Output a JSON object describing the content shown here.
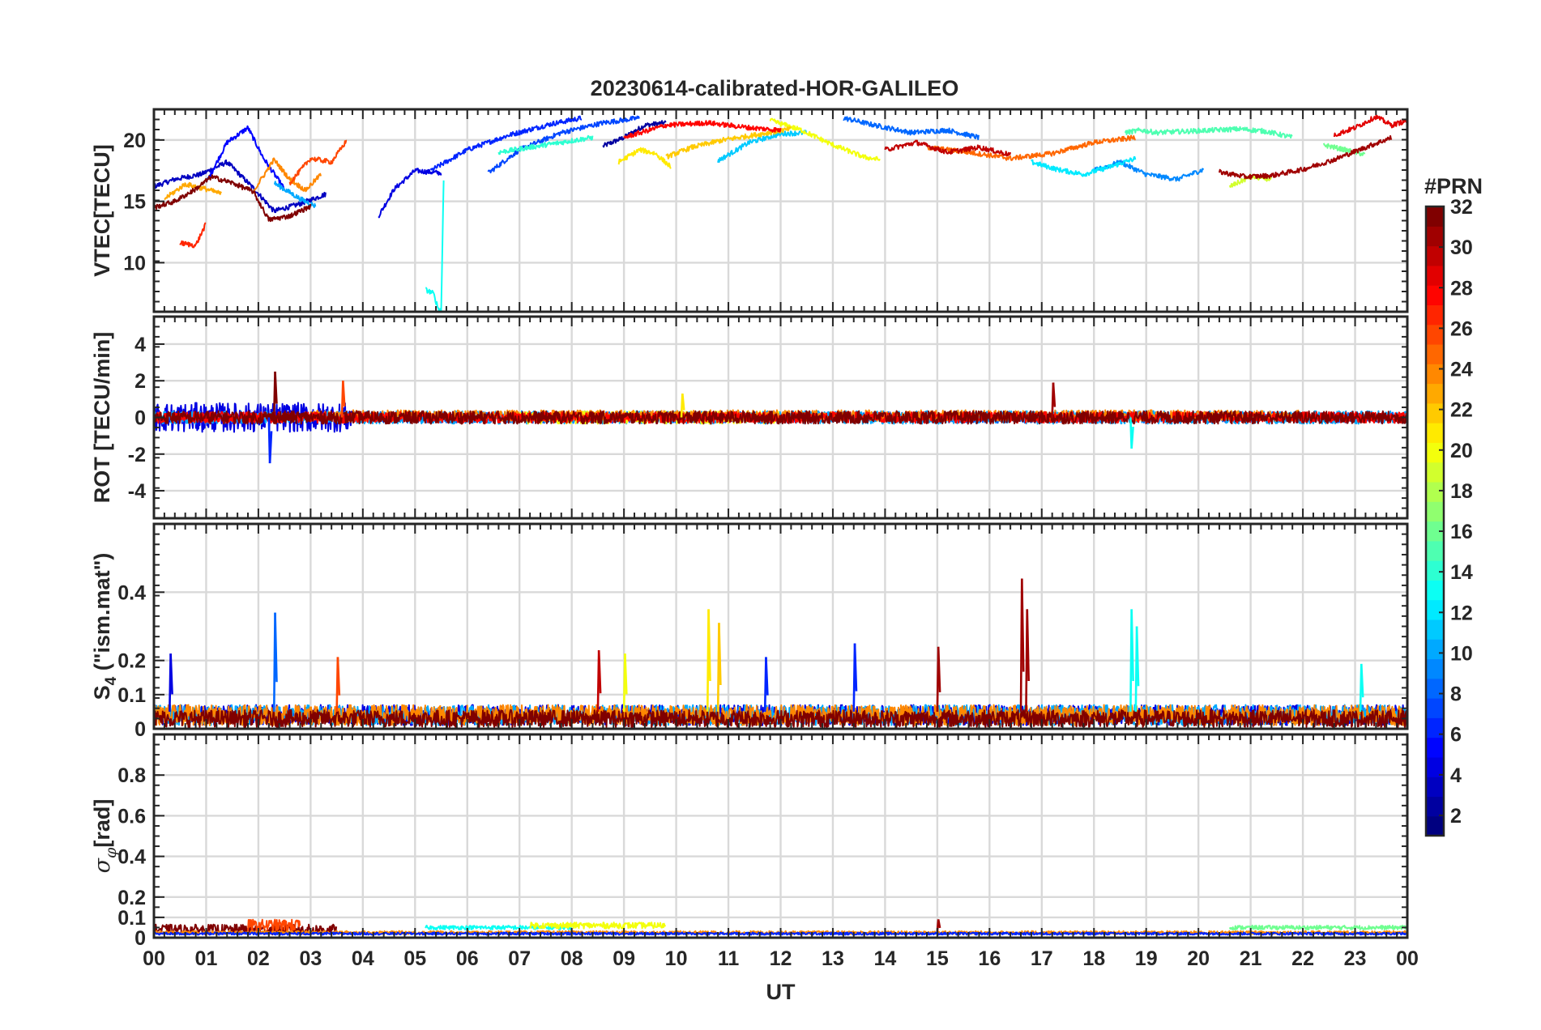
{
  "figure_title": "20230614-calibrated-HOR-GALILEO",
  "chart_data": [
    {
      "type": "line",
      "panel": "vtec",
      "ylabel": "VTEC[TECU]",
      "ylim": [
        6,
        22.5
      ],
      "yticks": [
        10,
        15,
        20
      ],
      "xlim": [
        0,
        24
      ],
      "grid": true,
      "series": [
        {
          "prn": 2,
          "x": [
            8.6,
            9.0,
            9.4,
            9.8
          ],
          "y": [
            19.5,
            20.2,
            21.2,
            21.4
          ]
        },
        {
          "prn": 3,
          "x": [
            0.0,
            0.4,
            0.9,
            1.4,
            1.9,
            2.3,
            2.8,
            3.3
          ],
          "y": [
            16.2,
            16.8,
            17.2,
            18.2,
            16.1,
            14.2,
            14.8,
            15.6
          ]
        },
        {
          "prn": 4,
          "x": [
            4.3,
            4.6,
            5.0,
            5.5
          ],
          "y": [
            13.8,
            16.0,
            17.5,
            17.3
          ]
        },
        {
          "prn": 5,
          "x": [
            1.0,
            1.4,
            1.8,
            2.1,
            2.5
          ],
          "y": [
            16.5,
            19.8,
            21.0,
            18.5,
            16.0
          ]
        },
        {
          "prn": 6,
          "x": [
            5.3,
            6.0,
            6.8,
            7.6,
            8.2
          ],
          "y": [
            17.5,
            19.2,
            20.4,
            21.3,
            21.8
          ]
        },
        {
          "prn": 7,
          "x": [
            6.4,
            7.0,
            7.8,
            8.6,
            9.3
          ],
          "y": [
            17.3,
            19.2,
            20.6,
            21.4,
            21.8
          ]
        },
        {
          "prn": 8,
          "x": [
            13.2,
            13.8,
            14.5,
            15.2,
            15.8
          ],
          "y": [
            21.8,
            21.2,
            20.6,
            20.8,
            20.2
          ]
        },
        {
          "prn": 9,
          "x": [
            18.0,
            18.5,
            19.0,
            19.6,
            20.1
          ],
          "y": [
            17.5,
            18.2,
            17.2,
            16.8,
            17.6
          ]
        },
        {
          "prn": 10,
          "x": [
            2.3,
            2.8,
            3.1
          ],
          "y": [
            16.5,
            15.2,
            14.6
          ]
        },
        {
          "prn": 11,
          "x": [
            10.8,
            11.4,
            12.0,
            12.5
          ],
          "y": [
            18.3,
            19.8,
            20.5,
            20.6
          ]
        },
        {
          "prn": 12,
          "x": [
            16.8,
            17.3,
            17.8,
            18.3,
            18.8
          ],
          "y": [
            18.2,
            17.6,
            17.2,
            17.8,
            18.5
          ]
        },
        {
          "prn": 13,
          "x": [
            5.2,
            5.35,
            5.45,
            5.5,
            5.55
          ],
          "y": [
            7.8,
            7.5,
            6.2,
            6.1,
            17.2
          ]
        },
        {
          "prn": 14,
          "x": [
            6.6,
            7.2,
            7.8,
            8.4
          ],
          "y": [
            19.0,
            19.4,
            19.8,
            20.2
          ]
        },
        {
          "prn": 15,
          "x": [
            18.6,
            18.9,
            19.2,
            20.8,
            21.3,
            21.8
          ],
          "y": [
            20.6,
            20.8,
            20.6,
            20.9,
            20.7,
            20.2
          ]
        },
        {
          "prn": 16,
          "x": [
            22.4,
            22.8,
            23.2
          ],
          "y": [
            19.6,
            19.2,
            18.8
          ]
        },
        {
          "prn": 19,
          "x": [
            20.6,
            21.0,
            21.4
          ],
          "y": [
            16.2,
            17.0,
            16.8
          ]
        },
        {
          "prn": 20,
          "x": [
            11.8,
            12.4,
            13.0,
            13.6,
            13.9
          ],
          "y": [
            21.6,
            20.8,
            19.6,
            18.6,
            18.4
          ]
        },
        {
          "prn": 21,
          "x": [
            8.9,
            9.3,
            9.6,
            9.9
          ],
          "y": [
            18.2,
            19.2,
            18.9,
            17.8
          ]
        },
        {
          "prn": 22,
          "x": [
            9.8,
            10.3,
            10.9,
            11.5,
            12.2
          ],
          "y": [
            18.6,
            19.4,
            20.0,
            20.4,
            20.9
          ]
        },
        {
          "prn": 23,
          "x": [
            0.2,
            0.6,
            1.0,
            1.3
          ],
          "y": [
            15.2,
            16.4,
            16.0,
            15.6
          ]
        },
        {
          "prn": 24,
          "x": [
            1.9,
            2.3,
            2.6,
            2.9,
            3.2
          ],
          "y": [
            15.8,
            18.4,
            16.8,
            15.9,
            17.2
          ]
        },
        {
          "prn": 25,
          "x": [
            14.8,
            15.6,
            16.4,
            17.2,
            18.0,
            18.8
          ],
          "y": [
            19.4,
            19.0,
            18.5,
            18.9,
            19.8,
            20.2
          ]
        },
        {
          "prn": 26,
          "x": [
            2.6,
            3.0,
            3.4,
            3.7
          ],
          "y": [
            16.5,
            18.5,
            18.2,
            20.0
          ]
        },
        {
          "prn": 27,
          "x": [
            0.5,
            0.8,
            1.0
          ],
          "y": [
            11.6,
            11.4,
            13.2
          ]
        },
        {
          "prn": 28,
          "x": [
            9.0,
            9.8,
            10.6,
            11.4,
            12.0
          ],
          "y": [
            20.2,
            21.2,
            21.4,
            21.0,
            20.8
          ]
        },
        {
          "prn": 29,
          "x": [
            22.6,
            23.0,
            23.4,
            23.7,
            24.0
          ],
          "y": [
            20.4,
            21.0,
            21.9,
            21.2,
            21.6
          ]
        },
        {
          "prn": 30,
          "x": [
            14.0,
            14.6,
            15.2,
            15.8,
            16.4
          ],
          "y": [
            19.2,
            19.8,
            19.0,
            19.4,
            18.8
          ]
        },
        {
          "prn": 31,
          "x": [
            20.4,
            20.9,
            21.4,
            22.0,
            22.6,
            23.2,
            23.7
          ],
          "y": [
            17.4,
            17.0,
            17.1,
            17.6,
            18.4,
            19.4,
            20.2
          ]
        },
        {
          "prn": 32,
          "x": [
            0.0,
            0.4,
            0.8,
            1.1,
            1.5,
            1.9,
            2.2,
            2.6,
            3.0
          ],
          "y": [
            14.5,
            15.0,
            16.0,
            17.0,
            16.5,
            15.8,
            13.5,
            13.8,
            14.6
          ]
        }
      ]
    },
    {
      "type": "line",
      "panel": "rot",
      "ylabel": "ROT [TECU/min]",
      "ylim": [
        -5.5,
        5.5
      ],
      "yticks": [
        -4,
        -2,
        0,
        2,
        4
      ],
      "xlim": [
        0,
        24
      ],
      "grid": true,
      "series": [
        {
          "prn": 4,
          "x": [
            0.0,
            3.8
          ],
          "y": [
            0.0,
            0.0
          ],
          "amplitude": 0.8
        },
        {
          "prn": 8,
          "x": [
            3.8,
            24.0
          ],
          "y": [
            0.0,
            0.0
          ],
          "amplitude": 0.3
        },
        {
          "prn": 10,
          "x": [
            0.0,
            24.0
          ],
          "y": [
            0.0,
            0.0
          ],
          "amplitude": 0.35
        },
        {
          "prn": 20,
          "x": [
            7.0,
            12.0
          ],
          "y": [
            0.0,
            0.0
          ],
          "amplitude": 0.35
        },
        {
          "prn": 24,
          "x": [
            3.0,
            22.0
          ],
          "y": [
            0.1,
            0.1
          ],
          "amplitude": 0.3
        },
        {
          "prn": 28,
          "x": [
            0.0,
            24.0
          ],
          "y": [
            0.0,
            0.0
          ],
          "amplitude": 0.3
        },
        {
          "prn": 32,
          "x": [
            0.0,
            24.0
          ],
          "y": [
            0.0,
            0.0
          ],
          "amplitude": 0.35
        }
      ],
      "spikes": [
        {
          "x": 2.2,
          "y": -2.5,
          "prn": 6
        },
        {
          "x": 2.3,
          "y": 2.5,
          "prn": 32
        },
        {
          "x": 3.6,
          "y": 2.0,
          "prn": 26
        },
        {
          "x": 17.2,
          "y": 1.9,
          "prn": 31
        },
        {
          "x": 18.7,
          "y": -1.7,
          "prn": 13
        },
        {
          "x": 10.1,
          "y": 1.3,
          "prn": 21
        }
      ]
    },
    {
      "type": "line",
      "panel": "s4",
      "ylabel": "S_4 (\"ism.mat\")",
      "ylim": [
        0,
        0.6
      ],
      "yticks": [
        0,
        0.1,
        0.2,
        0.4
      ],
      "ytick_labels": [
        "0",
        "0.1",
        "0.2",
        "0.4"
      ],
      "xlim": [
        0,
        24
      ],
      "grid": true,
      "series": [
        {
          "prn": 4,
          "x": [
            0.0,
            24.0
          ],
          "y": [
            0.04,
            0.04
          ],
          "amplitude": 0.03
        },
        {
          "prn": 10,
          "x": [
            0.0,
            24.0
          ],
          "y": [
            0.04,
            0.04
          ],
          "amplitude": 0.03
        },
        {
          "prn": 24,
          "x": [
            0.0,
            24.0
          ],
          "y": [
            0.04,
            0.04
          ],
          "amplitude": 0.03
        },
        {
          "prn": 32,
          "x": [
            0.0,
            24.0
          ],
          "y": [
            0.03,
            0.03
          ],
          "amplitude": 0.025
        }
      ],
      "spikes": [
        {
          "x": 0.3,
          "y": 0.22,
          "prn": 4
        },
        {
          "x": 2.3,
          "y": 0.34,
          "prn": 8
        },
        {
          "x": 3.5,
          "y": 0.21,
          "prn": 26
        },
        {
          "x": 8.5,
          "y": 0.23,
          "prn": 30
        },
        {
          "x": 9.0,
          "y": 0.22,
          "prn": 20
        },
        {
          "x": 10.6,
          "y": 0.35,
          "prn": 21
        },
        {
          "x": 10.8,
          "y": 0.31,
          "prn": 22
        },
        {
          "x": 11.7,
          "y": 0.21,
          "prn": 6
        },
        {
          "x": 13.4,
          "y": 0.25,
          "prn": 6
        },
        {
          "x": 15.0,
          "y": 0.24,
          "prn": 31
        },
        {
          "x": 16.6,
          "y": 0.44,
          "prn": 31
        },
        {
          "x": 16.7,
          "y": 0.35,
          "prn": 31
        },
        {
          "x": 18.7,
          "y": 0.35,
          "prn": 13
        },
        {
          "x": 18.8,
          "y": 0.3,
          "prn": 13
        },
        {
          "x": 23.1,
          "y": 0.19,
          "prn": 13
        }
      ]
    },
    {
      "type": "line",
      "panel": "sigma_phi",
      "ylabel": "σ_φ[rad]",
      "ylim": [
        0,
        1.0
      ],
      "yticks": [
        0,
        0.1,
        0.2,
        0.4,
        0.6,
        0.8
      ],
      "ytick_labels": [
        "0",
        "0.1",
        "0.2",
        "0.4",
        "0.6",
        "0.8"
      ],
      "xlim": [
        0,
        24
      ],
      "xlabel": "UT",
      "xtick_labels": [
        "00",
        "01",
        "02",
        "03",
        "04",
        "05",
        "06",
        "07",
        "08",
        "09",
        "10",
        "11",
        "12",
        "13",
        "14",
        "15",
        "16",
        "17",
        "18",
        "19",
        "20",
        "21",
        "22",
        "23",
        "00"
      ],
      "grid": true,
      "series": [
        {
          "prn": 32,
          "x": [
            0.0,
            3.5
          ],
          "y": [
            0.04,
            0.04
          ],
          "amplitude": 0.025
        },
        {
          "prn": 26,
          "x": [
            1.8,
            2.8
          ],
          "y": [
            0.06,
            0.06
          ],
          "amplitude": 0.03
        },
        {
          "prn": 13,
          "x": [
            5.2,
            8.0
          ],
          "y": [
            0.05,
            0.05
          ],
          "amplitude": 0.01
        },
        {
          "prn": 20,
          "x": [
            7.2,
            9.8
          ],
          "y": [
            0.06,
            0.06
          ],
          "amplitude": 0.015
        },
        {
          "prn": 16,
          "x": [
            20.6,
            24.0
          ],
          "y": [
            0.05,
            0.05
          ],
          "amplitude": 0.01
        },
        {
          "prn": 24,
          "x": [
            0.0,
            24.0
          ],
          "y": [
            0.025,
            0.025
          ],
          "amplitude": 0.008
        },
        {
          "prn": 6,
          "x": [
            0.0,
            24.0
          ],
          "y": [
            0.02,
            0.02
          ],
          "amplitude": 0.006
        }
      ],
      "spikes": [
        {
          "x": 15.0,
          "y": 0.09,
          "prn": 31
        }
      ]
    }
  ],
  "colorbar": {
    "label": "#PRN",
    "min": 1,
    "max": 32,
    "ticks": [
      2,
      4,
      6,
      8,
      10,
      12,
      14,
      16,
      18,
      20,
      22,
      24,
      26,
      28,
      30,
      32
    ],
    "colormap": "jet",
    "levels": 32
  }
}
